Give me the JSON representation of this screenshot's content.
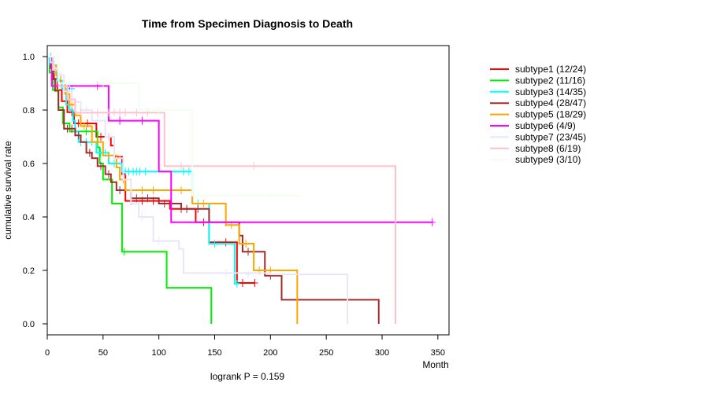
{
  "chart_data": {
    "type": "line",
    "subtype": "kaplan-meier",
    "title": "Time from Specimen Diagnosis to Death",
    "xlabel": "Month",
    "ylabel": "cumulative survival rate",
    "xlim": [
      0,
      360
    ],
    "ylim": [
      0,
      1.04
    ],
    "xticks": [
      0,
      50,
      100,
      150,
      200,
      250,
      300,
      350
    ],
    "yticks": [
      0.0,
      0.2,
      0.4,
      0.6,
      0.8,
      1.0
    ],
    "pvalue_text": "logrank P = 0.159",
    "legend_position": "right",
    "series": [
      {
        "name": "subtype1 (12/24)",
        "color": "#ff0000",
        "steps": [
          [
            0,
            1.0
          ],
          [
            3,
            0.958
          ],
          [
            6,
            0.917
          ],
          [
            9,
            0.875
          ],
          [
            13,
            0.833
          ],
          [
            18,
            0.792
          ],
          [
            24,
            0.75
          ],
          [
            44,
            0.7
          ],
          [
            57,
            0.667
          ],
          [
            60,
            0.625
          ],
          [
            67,
            0.56
          ],
          [
            70,
            0.46
          ],
          [
            110,
            0.43
          ],
          [
            133,
            0.38
          ],
          [
            145,
            0.305
          ],
          [
            170,
            0.153
          ]
        ],
        "end": 186,
        "censors": [
          [
            22,
            0.792
          ],
          [
            28,
            0.75
          ],
          [
            36,
            0.75
          ],
          [
            48,
            0.7
          ],
          [
            55,
            0.7
          ],
          [
            75,
            0.46
          ],
          [
            85,
            0.46
          ],
          [
            95,
            0.46
          ],
          [
            120,
            0.43
          ],
          [
            140,
            0.38
          ],
          [
            160,
            0.305
          ],
          [
            175,
            0.153
          ],
          [
            186,
            0.153
          ]
        ]
      },
      {
        "name": "subtype2 (11/16)",
        "color": "#00ee00",
        "steps": [
          [
            0,
            1.0
          ],
          [
            2,
            0.94
          ],
          [
            5,
            0.875
          ],
          [
            10,
            0.81
          ],
          [
            14,
            0.75
          ],
          [
            20,
            0.72
          ],
          [
            45,
            0.66
          ],
          [
            47,
            0.6
          ],
          [
            50,
            0.54
          ],
          [
            58,
            0.45
          ],
          [
            67,
            0.27
          ],
          [
            107,
            0.135
          ],
          [
            147,
            0.0
          ]
        ],
        "end": 147,
        "censors": [
          [
            25,
            0.72
          ],
          [
            35,
            0.72
          ],
          [
            69,
            0.27
          ]
        ]
      },
      {
        "name": "subtype3 (14/35)",
        "color": "#00ffff",
        "steps": [
          [
            0,
            1.0
          ],
          [
            2,
            0.97
          ],
          [
            5,
            0.94
          ],
          [
            9,
            0.91
          ],
          [
            13,
            0.88
          ],
          [
            17,
            0.82
          ],
          [
            20,
            0.8
          ],
          [
            23,
            0.76
          ],
          [
            25,
            0.72
          ],
          [
            28,
            0.68
          ],
          [
            44,
            0.64
          ],
          [
            55,
            0.6
          ],
          [
            67,
            0.57
          ],
          [
            90,
            0.57
          ],
          [
            130,
            0.45
          ],
          [
            145,
            0.3
          ],
          [
            168,
            0.15
          ],
          [
            172,
            0.15
          ]
        ],
        "end": 172,
        "censors": [
          [
            3,
            1.0
          ],
          [
            6,
            0.97
          ],
          [
            8,
            0.94
          ],
          [
            10,
            0.91
          ],
          [
            12,
            0.91
          ],
          [
            15,
            0.88
          ],
          [
            18,
            0.88
          ],
          [
            22,
            0.88
          ],
          [
            30,
            0.68
          ],
          [
            35,
            0.68
          ],
          [
            40,
            0.68
          ],
          [
            48,
            0.64
          ],
          [
            52,
            0.64
          ],
          [
            60,
            0.6
          ],
          [
            70,
            0.57
          ],
          [
            73,
            0.57
          ],
          [
            77,
            0.57
          ],
          [
            80,
            0.57
          ],
          [
            83,
            0.57
          ],
          [
            88,
            0.57
          ],
          [
            122,
            0.57
          ],
          [
            127,
            0.57
          ],
          [
            135,
            0.45
          ],
          [
            150,
            0.3
          ],
          [
            170,
            0.15
          ]
        ]
      },
      {
        "name": "subtype4 (28/47)",
        "color": "#a52a2a",
        "steps": [
          [
            0,
            1.0
          ],
          [
            3,
            0.957
          ],
          [
            5,
            0.915
          ],
          [
            7,
            0.872
          ],
          [
            10,
            0.8
          ],
          [
            15,
            0.73
          ],
          [
            25,
            0.705
          ],
          [
            30,
            0.68
          ],
          [
            35,
            0.64
          ],
          [
            40,
            0.62
          ],
          [
            45,
            0.59
          ],
          [
            52,
            0.56
          ],
          [
            57,
            0.53
          ],
          [
            62,
            0.5
          ],
          [
            75,
            0.47
          ],
          [
            100,
            0.45
          ],
          [
            120,
            0.43
          ],
          [
            145,
            0.38
          ],
          [
            172,
            0.33
          ],
          [
            175,
            0.27
          ],
          [
            195,
            0.18
          ],
          [
            210,
            0.09
          ],
          [
            297,
            0.0
          ]
        ],
        "end": 297,
        "censors": [
          [
            18,
            0.73
          ],
          [
            22,
            0.73
          ],
          [
            28,
            0.705
          ],
          [
            38,
            0.64
          ],
          [
            48,
            0.59
          ],
          [
            55,
            0.56
          ],
          [
            65,
            0.5
          ],
          [
            80,
            0.47
          ],
          [
            90,
            0.47
          ],
          [
            105,
            0.45
          ],
          [
            125,
            0.43
          ],
          [
            135,
            0.43
          ],
          [
            160,
            0.38
          ],
          [
            180,
            0.27
          ],
          [
            200,
            0.18
          ]
        ]
      },
      {
        "name": "subtype5 (18/29)",
        "color": "#ffa500",
        "steps": [
          [
            0,
            1.0
          ],
          [
            4,
            0.966
          ],
          [
            8,
            0.93
          ],
          [
            12,
            0.9
          ],
          [
            16,
            0.86
          ],
          [
            20,
            0.82
          ],
          [
            25,
            0.78
          ],
          [
            30,
            0.74
          ],
          [
            40,
            0.68
          ],
          [
            50,
            0.63
          ],
          [
            62,
            0.585
          ],
          [
            65,
            0.54
          ],
          [
            70,
            0.5
          ],
          [
            90,
            0.5
          ],
          [
            110,
            0.5
          ],
          [
            130,
            0.45
          ],
          [
            160,
            0.37
          ],
          [
            172,
            0.3
          ],
          [
            185,
            0.2
          ],
          [
            224,
            0.0
          ]
        ],
        "end": 224,
        "censors": [
          [
            22,
            0.82
          ],
          [
            33,
            0.74
          ],
          [
            45,
            0.68
          ],
          [
            55,
            0.63
          ],
          [
            68,
            0.54
          ],
          [
            75,
            0.5
          ],
          [
            85,
            0.5
          ],
          [
            95,
            0.5
          ],
          [
            120,
            0.5
          ],
          [
            140,
            0.45
          ],
          [
            165,
            0.37
          ],
          [
            178,
            0.3
          ],
          [
            190,
            0.2
          ],
          [
            200,
            0.2
          ]
        ]
      },
      {
        "name": "subtype6 (4/9)",
        "color": "#ff00ff",
        "steps": [
          [
            0,
            1.0
          ],
          [
            4,
            0.89
          ],
          [
            53,
            0.89
          ],
          [
            55,
            0.76
          ],
          [
            100,
            0.57
          ],
          [
            111,
            0.38
          ],
          [
            345,
            0.38
          ]
        ],
        "end": 345,
        "censors": [
          [
            20,
            0.89
          ],
          [
            45,
            0.89
          ],
          [
            65,
            0.76
          ],
          [
            85,
            0.76
          ],
          [
            345,
            0.38
          ]
        ]
      },
      {
        "name": "subtype7 (23/45)",
        "color": "#e6e6fa",
        "steps": [
          [
            0,
            1.0
          ],
          [
            3,
            0.978
          ],
          [
            6,
            0.956
          ],
          [
            10,
            0.93
          ],
          [
            15,
            0.87
          ],
          [
            22,
            0.83
          ],
          [
            30,
            0.8
          ],
          [
            40,
            0.76
          ],
          [
            52,
            0.7
          ],
          [
            60,
            0.62
          ],
          [
            68,
            0.54
          ],
          [
            75,
            0.45
          ],
          [
            82,
            0.4
          ],
          [
            95,
            0.31
          ],
          [
            118,
            0.28
          ],
          [
            122,
            0.19
          ],
          [
            200,
            0.185
          ],
          [
            269,
            0.0
          ]
        ],
        "end": 269,
        "censors": [
          [
            12,
            0.93
          ],
          [
            18,
            0.87
          ],
          [
            25,
            0.83
          ],
          [
            35,
            0.8
          ],
          [
            45,
            0.76
          ],
          [
            55,
            0.7
          ],
          [
            65,
            0.62
          ],
          [
            85,
            0.4
          ],
          [
            100,
            0.31
          ],
          [
            160,
            0.19
          ],
          [
            180,
            0.185
          ]
        ]
      },
      {
        "name": "subtype8 (6/19)",
        "color": "#ffc0cb",
        "steps": [
          [
            0,
            1.0
          ],
          [
            5,
            0.95
          ],
          [
            10,
            0.89
          ],
          [
            18,
            0.84
          ],
          [
            25,
            0.79
          ],
          [
            105,
            0.59
          ],
          [
            305,
            0.59
          ],
          [
            312,
            0.0
          ]
        ],
        "end": 312,
        "censors": [
          [
            30,
            0.79
          ],
          [
            45,
            0.79
          ],
          [
            55,
            0.79
          ],
          [
            60,
            0.79
          ],
          [
            65,
            0.79
          ],
          [
            70,
            0.79
          ],
          [
            80,
            0.79
          ],
          [
            90,
            0.79
          ],
          [
            120,
            0.59
          ],
          [
            185,
            0.59
          ]
        ]
      },
      {
        "name": "subtype9 (3/10)",
        "color": "#f0fff0",
        "steps": [
          [
            0,
            1.0
          ],
          [
            10,
            0.9
          ],
          [
            80,
            0.9
          ],
          [
            82,
            0.8
          ],
          [
            120,
            0.8
          ],
          [
            130,
            0.48
          ],
          [
            226,
            0.48
          ]
        ],
        "end": 226,
        "censors": [
          [
            20,
            0.9
          ],
          [
            50,
            0.9
          ],
          [
            100,
            0.8
          ],
          [
            160,
            0.48
          ],
          [
            200,
            0.48
          ]
        ]
      }
    ]
  }
}
